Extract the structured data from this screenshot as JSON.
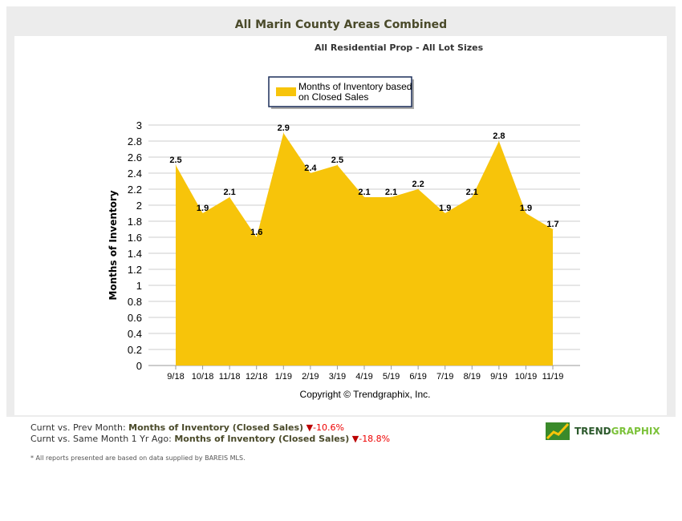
{
  "header": {
    "title": "All Marin County Areas Combined",
    "subtitle": "All Residential Prop - All Lot Sizes"
  },
  "chart_data": {
    "type": "area",
    "categories": [
      "9/18",
      "10/18",
      "11/18",
      "12/18",
      "1/19",
      "2/19",
      "3/19",
      "4/19",
      "5/19",
      "6/19",
      "7/19",
      "8/19",
      "9/19",
      "10/19",
      "11/19"
    ],
    "series": [
      {
        "name": "Months of Inventory based on Closed Sales",
        "values": [
          2.5,
          1.9,
          2.1,
          1.6,
          2.9,
          2.4,
          2.5,
          2.1,
          2.1,
          2.2,
          1.9,
          2.1,
          2.8,
          1.9,
          1.7
        ],
        "color": "#f7c40a"
      }
    ],
    "legend_lines": [
      "Months of Inventory based",
      "on Closed Sales"
    ],
    "ylabel": "Months of Inventory",
    "xlabel": "",
    "ylim": [
      0,
      3
    ],
    "yticks": [
      "0",
      "0.2",
      "0.4",
      "0.6",
      "0.8",
      "1",
      "1.2",
      "1.4",
      "1.6",
      "1.8",
      "2",
      "2.2",
      "2.4",
      "2.6",
      "2.8",
      "3"
    ],
    "grid": true,
    "legend_position": "top-center",
    "copyright": "Copyright © Trendgraphix, Inc."
  },
  "stats": [
    {
      "prefix": "Curnt vs. Prev Month: ",
      "metric": "Months of Inventory (Closed Sales)",
      "change": "-10.6%"
    },
    {
      "prefix": "Curnt vs. Same Month 1 Yr Ago: ",
      "metric": "Months of Inventory (Closed Sales)",
      "change": "-18.8%"
    }
  ],
  "note": "* All reports presented are based on data supplied by BAREIS MLS.",
  "logo": {
    "part1": "TREND",
    "part2": "GRAPHIX"
  }
}
